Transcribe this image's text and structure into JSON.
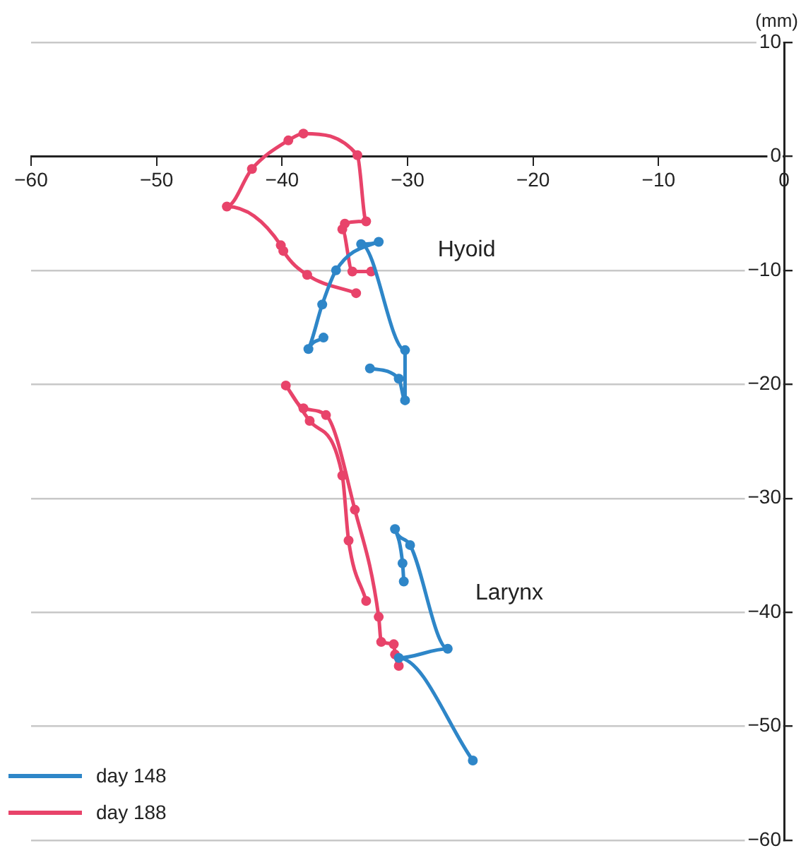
{
  "chart_data": {
    "type": "line",
    "ylabel": "(mm)",
    "xlim": [
      -60,
      0
    ],
    "xticks": [
      -60,
      -50,
      -40,
      -30,
      -20,
      -10,
      0
    ],
    "ylim": [
      -60,
      10
    ],
    "yticks": [
      -60,
      -50,
      -40,
      -30,
      -20,
      -10,
      0,
      10
    ],
    "grid": "y",
    "legend": "bottom left",
    "marker": "circle",
    "line_style": "solid",
    "annotations": [
      "Hyoid",
      "Larynx"
    ],
    "series": [
      {
        "name": "day 148",
        "color": "#2e86c8",
        "x": [
          -36.7,
          -37.9,
          -36.8,
          -35.7,
          -32.3,
          -33.7,
          -30.2,
          -30.2,
          -30.7,
          -33.0,
          null,
          -30.3,
          -30.4,
          -31.0,
          -29.8,
          -26.8,
          -30.7,
          -24.8
        ],
        "values": [
          -15.9,
          -16.9,
          -13.0,
          -10.0,
          -7.5,
          -7.7,
          -17.0,
          -21.4,
          -19.5,
          -18.6,
          null,
          -37.3,
          -35.7,
          -32.7,
          -34.1,
          -43.2,
          -44.0,
          -53.0
        ]
      },
      {
        "name": "day 188",
        "color": "#e8436a",
        "x": [
          -32.9,
          -34.4,
          -35.2,
          -35.0,
          -33.3,
          -34.0,
          -38.3,
          -39.5,
          -42.4,
          -44.4,
          -40.1,
          -39.9,
          -38.0,
          -34.1,
          null,
          -33.3,
          -34.7,
          -35.2,
          -37.8,
          -39.7,
          -38.3,
          -36.5,
          -34.2,
          -32.3,
          -32.1,
          -31.1,
          -31.0,
          -30.7
        ],
        "values": [
          -10.1,
          -10.1,
          -6.4,
          -5.9,
          -5.7,
          0.1,
          2.0,
          1.4,
          -1.1,
          -4.4,
          -7.8,
          -8.3,
          -10.4,
          -12.0,
          null,
          -39.0,
          -33.7,
          -28.0,
          -23.2,
          -20.1,
          -22.1,
          -22.7,
          -31.0,
          -40.4,
          -42.6,
          -42.8,
          -43.7,
          -44.7
        ]
      }
    ]
  }
}
